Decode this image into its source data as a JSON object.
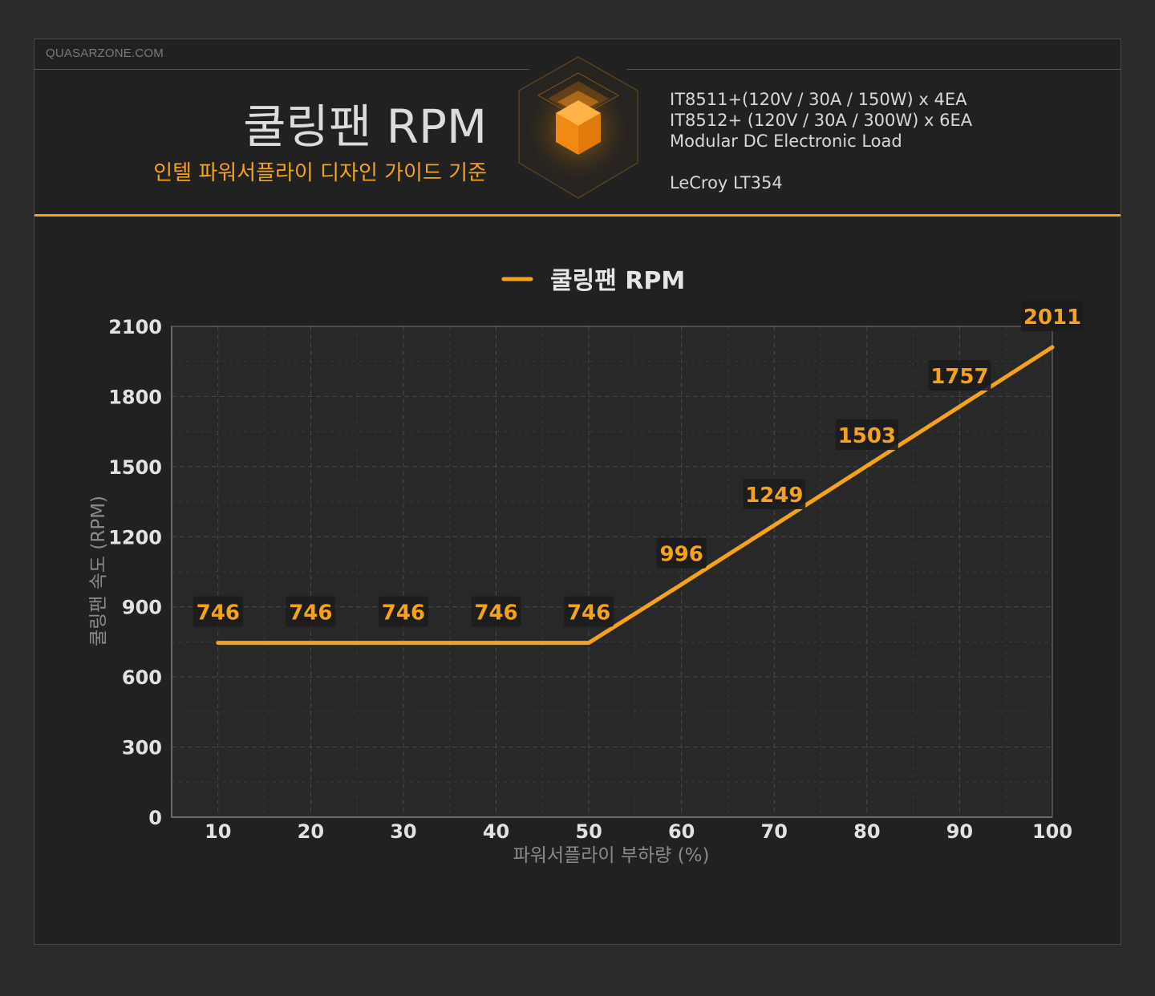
{
  "brand": "QUASARZONE.COM",
  "header": {
    "title": "쿨링팬 RPM",
    "subtitle": "인텔 파워서플라이 디자인 가이드 기준",
    "equipment": [
      "IT8511+(120V / 30A / 150W) x 4EA",
      "IT8512+ (120V / 30A / 300W) x 6EA",
      "Modular DC Electronic Load",
      "LeCroy LT354"
    ]
  },
  "colors": {
    "accent": "#f5a21e",
    "background": "#2b2b2b",
    "panel": "#212121",
    "plot_area": "#282828"
  },
  "chart_data": {
    "type": "line",
    "title": "",
    "legend": "쿨링팬 RPM",
    "legend_position": "top-center",
    "xlabel": "파워서플라이 부하량 (%)",
    "ylabel": "쿨링팬 속도 (RPM)",
    "x": [
      10,
      20,
      30,
      40,
      50,
      60,
      70,
      80,
      90,
      100
    ],
    "series": [
      {
        "name": "쿨링팬 RPM",
        "values": [
          746,
          746,
          746,
          746,
          746,
          996,
          1249,
          1503,
          1757,
          2011
        ]
      }
    ],
    "x_ticks": [
      "10",
      "20",
      "30",
      "40",
      "50",
      "60",
      "70",
      "80",
      "90",
      "100"
    ],
    "y_ticks": [
      0,
      300,
      600,
      900,
      1200,
      1500,
      1800,
      2100
    ],
    "ylim": [
      0,
      2100
    ],
    "xlim": [
      5,
      100
    ],
    "grid": true
  }
}
